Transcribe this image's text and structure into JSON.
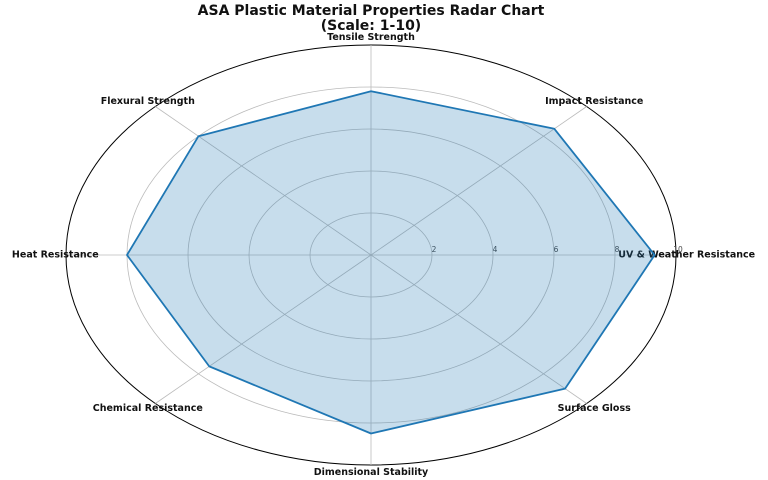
{
  "chart_data": {
    "type": "radar",
    "title": "ASA Plastic Material Properties Radar Chart",
    "subtitle": "(Scale: 1-10)",
    "categories": [
      "Tensile Strength",
      "Impact Resistance",
      "UV & Weather Resistance",
      "Surface Gloss",
      "Dimensional Stability",
      "Chemical Resistance",
      "Heat Resistance",
      "Flexural Strength"
    ],
    "values": [
      7.8,
      8.5,
      9.3,
      9,
      8.5,
      7.5,
      8,
      8
    ],
    "color": "#1f77b4",
    "rlim": [
      0,
      10
    ],
    "rticks": [
      2,
      4,
      6,
      8,
      10
    ],
    "grid": true
  }
}
